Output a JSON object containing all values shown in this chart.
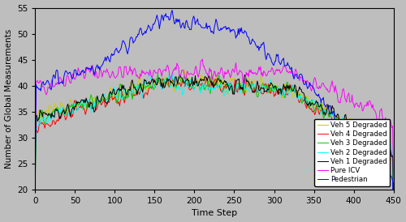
{
  "title": "",
  "xlabel": "Time Step",
  "ylabel": "Number of Global Measurements",
  "xlim": [
    0,
    450
  ],
  "ylim": [
    20,
    55
  ],
  "xticks": [
    0,
    50,
    100,
    150,
    200,
    250,
    300,
    350,
    400,
    450
  ],
  "yticks": [
    20,
    25,
    30,
    35,
    40,
    45,
    50,
    55
  ],
  "background_color": "#bebebe",
  "line_colors": {
    "Pure ICV": "#ff00ff",
    "Pedestrian": "#0000ff",
    "Veh 1 Degraded": "#000000",
    "Veh 2 Degraded": "#00ffff",
    "Veh 3 Degraded": "#00cc00",
    "Veh 4 Degraded": "#ff0000",
    "Veh 5 Degraded": "#cccc00"
  },
  "seed": 42,
  "n_steps": 451
}
